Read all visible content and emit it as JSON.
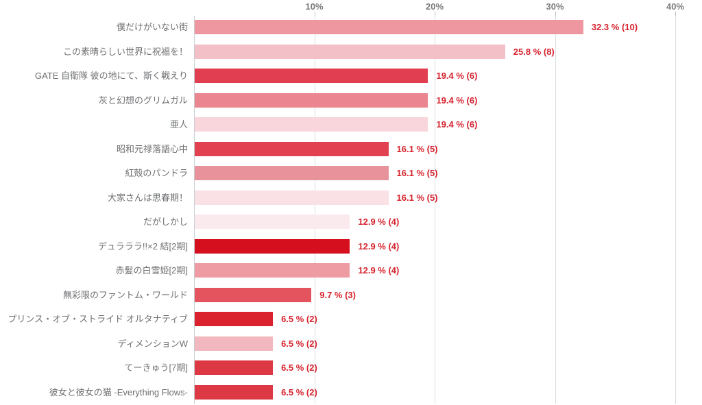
{
  "colors": {
    "background": "#FFFFFF",
    "value_label": "#D6232E",
    "category_label": "#6E6F72",
    "axis_label": "#7A7B7E",
    "gridline": "#DADCDE",
    "axis_line": "#C6CED4"
  },
  "chart_data": {
    "type": "bar",
    "orientation": "horizontal",
    "title": "",
    "xlabel": "",
    "ylabel": "",
    "xlim": [
      0,
      40
    ],
    "grid": true,
    "legend": false,
    "axis_position": "top",
    "x_ticks": [
      {
        "value": 10,
        "label": "10%"
      },
      {
        "value": 20,
        "label": "20%"
      },
      {
        "value": 30,
        "label": "30%"
      },
      {
        "value": 40,
        "label": "40%"
      }
    ],
    "rows": [
      {
        "category": "僕だけがいない街",
        "percent": 32.3,
        "count": 10,
        "value_label": "32.3 % (10)",
        "color": "#EE97A0"
      },
      {
        "category": "この素晴らしい世界に祝福を！",
        "percent": 25.8,
        "count": 8,
        "value_label": "25.8 % (8)",
        "color": "#F4C0C8"
      },
      {
        "category": "GATE 自衛隊 彼の地にて、斯く戦えり",
        "percent": 19.4,
        "count": 6,
        "value_label": "19.4 % (6)",
        "color": "#E23E51"
      },
      {
        "category": "灰と幻想のグリムガル",
        "percent": 19.4,
        "count": 6,
        "value_label": "19.4 % (6)",
        "color": "#EB8690"
      },
      {
        "category": "亜人",
        "percent": 19.4,
        "count": 6,
        "value_label": "19.4 % (6)",
        "color": "#F8D6DB"
      },
      {
        "category": "昭和元禄落語心中",
        "percent": 16.1,
        "count": 5,
        "value_label": "16.1 % (5)",
        "color": "#E2424F"
      },
      {
        "category": "紅殻のパンドラ",
        "percent": 16.1,
        "count": 5,
        "value_label": "16.1 % (5)",
        "color": "#E8929B"
      },
      {
        "category": "大家さんは思春期！",
        "percent": 16.1,
        "count": 5,
        "value_label": "16.1 % (5)",
        "color": "#FAE1E5"
      },
      {
        "category": "だがしかし",
        "percent": 12.9,
        "count": 4,
        "value_label": "12.9 % (4)",
        "color": "#FBEAED"
      },
      {
        "category": "デュラララ!!×2 結[2期]",
        "percent": 12.9,
        "count": 4,
        "value_label": "12.9 % (4)",
        "color": "#D50F1E"
      },
      {
        "category": "赤髪の白雪姫[2期]",
        "percent": 12.9,
        "count": 4,
        "value_label": "12.9 % (4)",
        "color": "#EF9BA3"
      },
      {
        "category": "無彩限のファントム・ワールド",
        "percent": 9.7,
        "count": 3,
        "value_label": "9.7 % (3)",
        "color": "#E4545F"
      },
      {
        "category": "プリンス・オブ・ストライド オルタナティブ",
        "percent": 6.5,
        "count": 2,
        "value_label": "6.5 % (2)",
        "color": "#D9222E"
      },
      {
        "category": "ディメンションW",
        "percent": 6.5,
        "count": 2,
        "value_label": "6.5 % (2)",
        "color": "#F3B7BF"
      },
      {
        "category": "てーきゅう[7期]",
        "percent": 6.5,
        "count": 2,
        "value_label": "6.5 % (2)",
        "color": "#DC3945"
      },
      {
        "category": "彼女と彼女の猫 -Everything Flows-",
        "percent": 6.5,
        "count": 2,
        "value_label": "6.5 % (2)",
        "color": "#DC3945"
      }
    ]
  }
}
